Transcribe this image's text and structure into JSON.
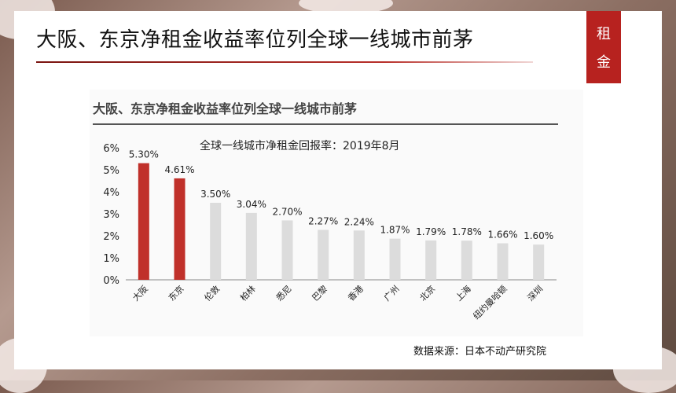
{
  "slide": {
    "title": "大阪、东京净租金收益率位列全球一线城市前茅",
    "tag_chars": [
      "租",
      "金"
    ],
    "source": "数据来源：日本不动产研究院"
  },
  "chart_data": {
    "type": "bar",
    "title": "大阪、东京净租金收益率位列全球一线城市前茅",
    "subtitle": "全球一线城市净租金回报率：2019年8月",
    "categories": [
      "大阪",
      "东京",
      "伦敦",
      "柏林",
      "悉尼",
      "巴黎",
      "香港",
      "广州",
      "北京",
      "上海",
      "纽约曼哈顿",
      "深圳"
    ],
    "values": [
      5.3,
      4.61,
      3.5,
      3.04,
      2.7,
      2.27,
      2.24,
      1.87,
      1.79,
      1.78,
      1.66,
      1.6
    ],
    "value_labels": [
      "5.30%",
      "4.61%",
      "3.50%",
      "3.04%",
      "2.70%",
      "2.27%",
      "2.24%",
      "1.87%",
      "1.79%",
      "1.78%",
      "1.66%",
      "1.60%"
    ],
    "highlight_color": "#c0302a",
    "default_color": "#dcdcdc",
    "y_ticks": [
      "0%",
      "1%",
      "2%",
      "3%",
      "4%",
      "5%",
      "6%"
    ],
    "ylim": [
      0,
      6
    ],
    "xlabel": "",
    "ylabel": "",
    "grid": false
  }
}
